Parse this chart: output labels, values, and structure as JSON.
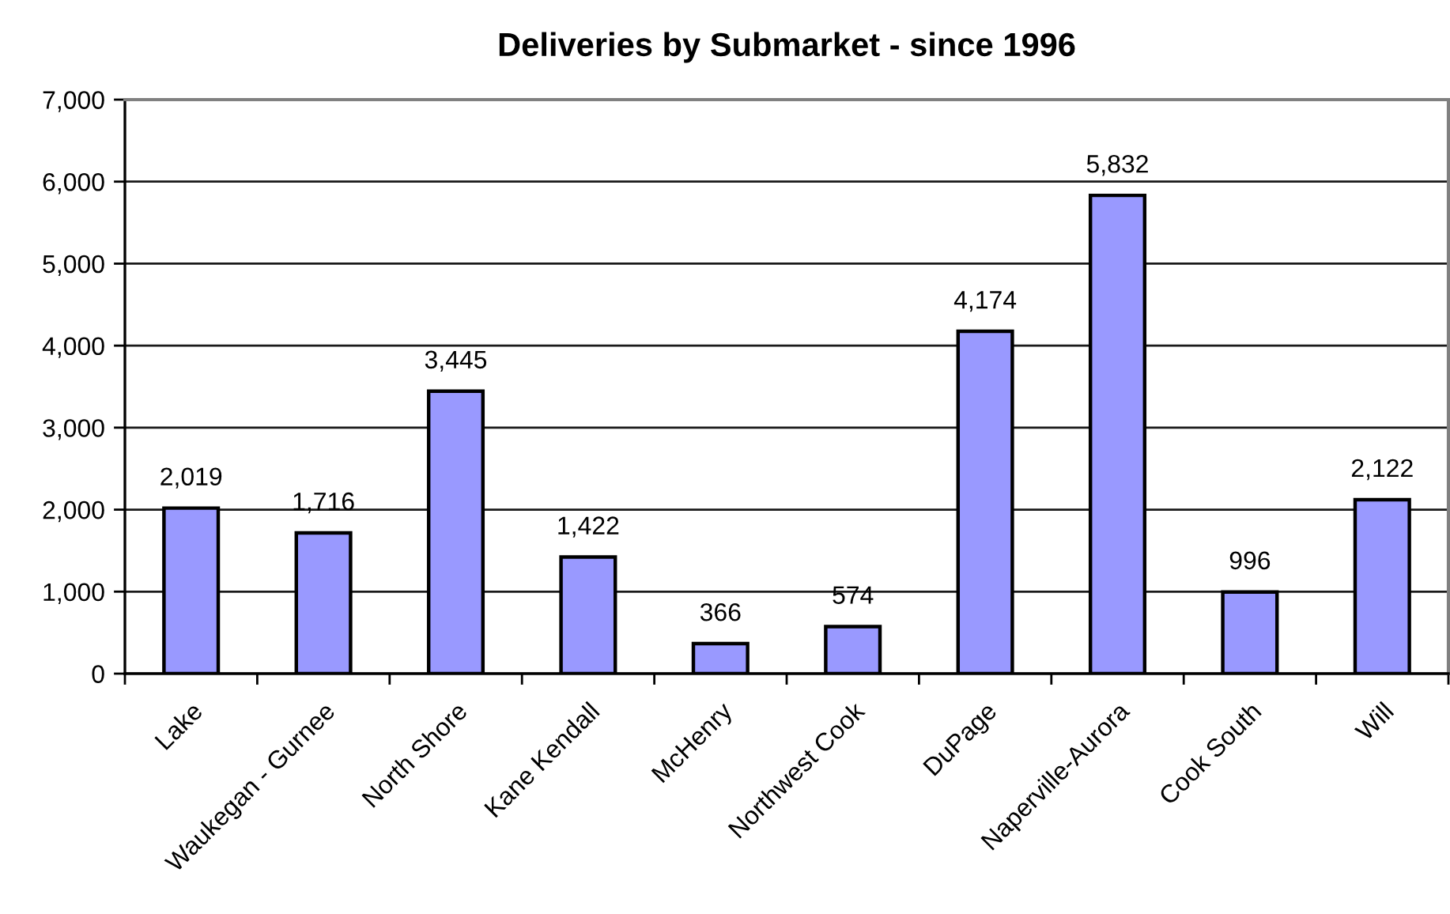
{
  "chart_data": {
    "type": "bar",
    "title": "Deliveries by Submarket - since 1996",
    "categories": [
      "Lake",
      "Waukegan - Gurnee",
      "North Shore",
      "Kane Kendall",
      "McHenry",
      "Northwest Cook",
      "DuPage",
      "Naperville-Aurora",
      "Cook South",
      "Will"
    ],
    "values": [
      2019,
      1716,
      3445,
      1422,
      366,
      574,
      4174,
      5832,
      996,
      2122
    ],
    "value_labels": [
      "2,019",
      "1,716",
      "3,445",
      "1,422",
      "366",
      "574",
      "4,174",
      "5,832",
      "996",
      "2,122"
    ],
    "color": "#9999ff",
    "ylim": [
      0,
      7000
    ],
    "yticks": [
      0,
      {
        "value": 1000,
        "label": "1,000"
      },
      {
        "value": 2000,
        "label": "2,000"
      },
      {
        "value": 3000,
        "label": "3,000"
      },
      {
        "value": 4000,
        "label": "4,000"
      },
      {
        "value": 5000,
        "label": "5,000"
      },
      {
        "value": 6000,
        "label": "6,000"
      },
      {
        "value": 7000,
        "label": "7,000"
      }
    ],
    "grid": "y"
  }
}
